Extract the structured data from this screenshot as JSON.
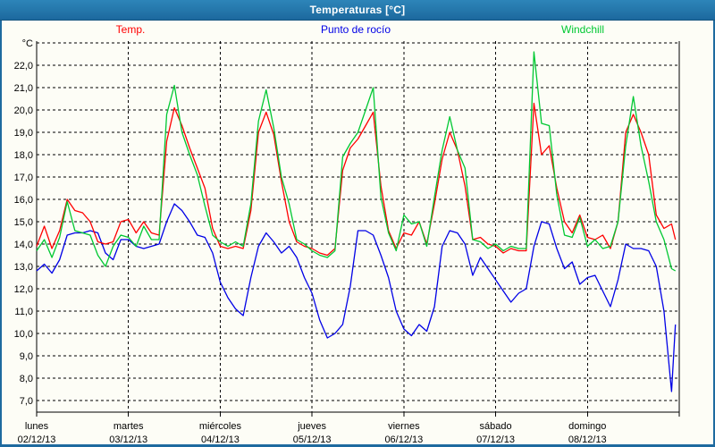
{
  "window": {
    "title": "Temperaturas [°C]",
    "frame_color": "#1e6a9f"
  },
  "legend": {
    "items": [
      {
        "label": "Temp.",
        "color": "#ff0000"
      },
      {
        "label": "Punto de rocío",
        "color": "#0000e6"
      },
      {
        "label": "Windchill",
        "color": "#00c832"
      }
    ]
  },
  "axes": {
    "y_unit": "°C",
    "y_tick_labels": [
      "22,0",
      "21,0",
      "20,0",
      "19,0",
      "18,0",
      "17,0",
      "16,0",
      "15,0",
      "14,0",
      "13,0",
      "12,0",
      "11,0",
      "10,0",
      "9,0",
      "8,0",
      "7,0"
    ],
    "x_days": [
      {
        "name": "lunes",
        "date": "02/12/13"
      },
      {
        "name": "martes",
        "date": "03/12/13"
      },
      {
        "name": "miércoles",
        "date": "04/12/13"
      },
      {
        "name": "jueves",
        "date": "05/12/13"
      },
      {
        "name": "viernes",
        "date": "06/12/13"
      },
      {
        "name": "sábado",
        "date": "07/12/13"
      },
      {
        "name": "domingo",
        "date": "08/12/13"
      }
    ]
  },
  "chart_data": {
    "type": "line",
    "title": "Temperaturas [°C]",
    "ylabel": "°C",
    "ylim": [
      6.5,
      23.1
    ],
    "y_grid_step": 1,
    "grid": "dashed",
    "legend_position": "top",
    "x_range_hours": [
      0,
      168
    ],
    "x_tick_labels": [
      "lunes 02/12/13",
      "martes 03/12/13",
      "miércoles 04/12/13",
      "jueves 05/12/13",
      "viernes 06/12/13",
      "sábado 07/12/13",
      "domingo 08/12/13"
    ],
    "x_hours": [
      0,
      2,
      4,
      6,
      8,
      10,
      12,
      14,
      16,
      18,
      20,
      22,
      24,
      26,
      28,
      30,
      32,
      34,
      36,
      38,
      40,
      42,
      44,
      46,
      48,
      50,
      52,
      54,
      56,
      58,
      60,
      62,
      64,
      66,
      68,
      70,
      72,
      74,
      76,
      78,
      80,
      82,
      84,
      86,
      88,
      90,
      92,
      94,
      96,
      98,
      100,
      102,
      104,
      106,
      108,
      110,
      112,
      114,
      116,
      118,
      120,
      122,
      124,
      126,
      128,
      130,
      132,
      134,
      136,
      138,
      140,
      142,
      144,
      146,
      148,
      150,
      152,
      154,
      156,
      158,
      160,
      162,
      164,
      166,
      167
    ],
    "series": [
      {
        "name": "Temp.",
        "color": "#ff0000",
        "values": [
          13.9,
          14.8,
          13.8,
          14.6,
          16.0,
          15.5,
          15.4,
          15.0,
          14.1,
          14.0,
          14.1,
          15.0,
          15.1,
          14.5,
          15.0,
          14.5,
          14.4,
          18.6,
          20.1,
          19.3,
          18.3,
          17.4,
          16.5,
          14.7,
          13.9,
          13.8,
          13.9,
          13.8,
          15.5,
          19.0,
          19.9,
          18.9,
          16.8,
          15.0,
          14.1,
          13.9,
          13.8,
          13.6,
          13.5,
          13.8,
          17.3,
          18.3,
          18.7,
          19.3,
          19.9,
          16.6,
          14.6,
          13.8,
          14.5,
          14.4,
          15.0,
          14.0,
          15.8,
          17.8,
          19.0,
          18.2,
          16.6,
          14.2,
          14.3,
          14.0,
          13.9,
          13.6,
          13.8,
          13.7,
          13.7,
          20.3,
          18.0,
          18.4,
          16.5,
          15.0,
          14.5,
          15.3,
          14.3,
          14.2,
          14.4,
          13.8,
          15.0,
          19.0,
          19.8,
          19.0,
          18.0,
          15.3,
          14.7,
          14.9,
          14.2
        ]
      },
      {
        "name": "Punto de rocío",
        "color": "#0000e6",
        "values": [
          12.8,
          13.1,
          12.7,
          13.3,
          14.4,
          14.5,
          14.5,
          14.6,
          14.5,
          13.6,
          13.3,
          14.2,
          14.2,
          13.9,
          13.8,
          13.9,
          14.0,
          15.0,
          15.8,
          15.5,
          15.0,
          14.4,
          14.3,
          13.6,
          12.3,
          11.6,
          11.1,
          10.8,
          12.5,
          13.9,
          14.5,
          14.1,
          13.6,
          13.9,
          13.4,
          12.5,
          11.8,
          10.6,
          9.8,
          10.0,
          10.4,
          12.1,
          14.6,
          14.6,
          14.4,
          13.5,
          12.5,
          11.0,
          10.2,
          9.9,
          10.4,
          10.1,
          11.2,
          13.9,
          14.6,
          14.5,
          14.0,
          12.6,
          13.4,
          12.9,
          12.4,
          11.9,
          11.4,
          11.8,
          12.0,
          13.9,
          15.0,
          14.9,
          13.8,
          12.9,
          13.2,
          12.2,
          12.5,
          12.6,
          11.9,
          11.2,
          12.4,
          14.0,
          13.8,
          13.8,
          13.7,
          13.0,
          11.0,
          7.4,
          10.4
        ]
      },
      {
        "name": "Windchill",
        "color": "#00c832",
        "values": [
          13.7,
          14.2,
          13.4,
          14.3,
          15.9,
          14.6,
          14.5,
          14.4,
          13.5,
          13.0,
          13.9,
          14.4,
          14.3,
          13.9,
          14.8,
          14.2,
          14.2,
          19.8,
          21.1,
          19.0,
          18.0,
          17.1,
          15.7,
          14.4,
          14.1,
          13.9,
          14.1,
          13.9,
          15.8,
          19.5,
          20.9,
          19.2,
          17.0,
          15.8,
          14.2,
          14.0,
          13.7,
          13.5,
          13.4,
          13.7,
          17.9,
          18.5,
          19.0,
          20.0,
          21.0,
          16.1,
          14.5,
          13.7,
          15.3,
          14.9,
          15.0,
          13.9,
          16.1,
          18.2,
          19.7,
          18.2,
          17.4,
          14.2,
          14.1,
          13.8,
          14.0,
          13.7,
          13.9,
          13.8,
          13.8,
          22.6,
          19.4,
          19.3,
          16.2,
          14.4,
          14.3,
          15.2,
          13.9,
          14.2,
          13.8,
          13.9,
          15.0,
          18.4,
          20.6,
          18.4,
          16.8,
          15.0,
          14.2,
          12.9,
          12.8
        ]
      }
    ]
  }
}
